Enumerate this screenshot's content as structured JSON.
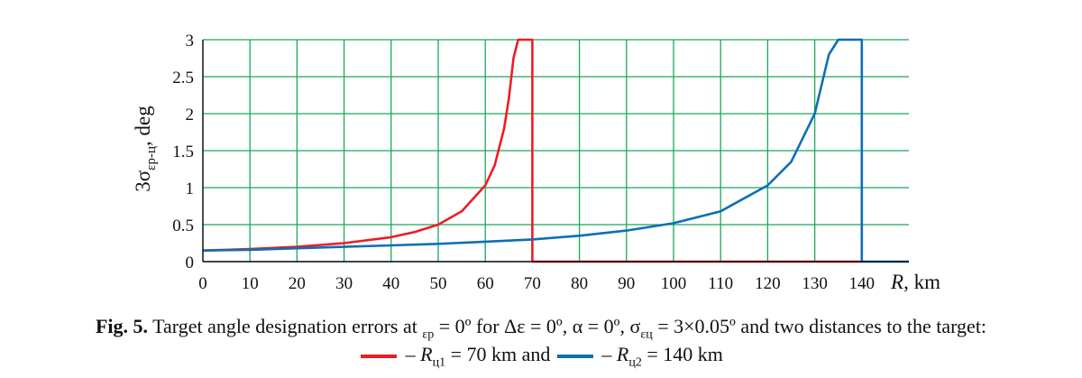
{
  "chart_data": {
    "type": "line",
    "xlabel": "R, km",
    "ylabel": "3σ",
    "ylabel_sub": "εр-ц",
    "ylabel_unit": ", deg",
    "xlim": [
      0,
      150
    ],
    "ylim": [
      0,
      3
    ],
    "x_ticks": [
      0,
      10,
      20,
      30,
      40,
      50,
      60,
      70,
      80,
      90,
      100,
      110,
      120,
      130,
      140
    ],
    "y_ticks": [
      0,
      0.5,
      1,
      1.5,
      2,
      2.5,
      3
    ],
    "y_tick_labels": [
      "0",
      "0.5",
      "1",
      "1.5",
      "2",
      "2.5",
      "3"
    ],
    "grid": true,
    "grid_color": "#1aa85a",
    "series": [
      {
        "color": "#ee1c25",
        "x": [
          0,
          10,
          20,
          30,
          40,
          45,
          50,
          55,
          60,
          62,
          64,
          65,
          66,
          67,
          70,
          70,
          140
        ],
        "y": [
          0.15,
          0.17,
          0.2,
          0.25,
          0.33,
          0.4,
          0.5,
          0.68,
          1.03,
          1.3,
          1.8,
          2.2,
          2.75,
          3.0,
          3.0,
          0,
          0
        ]
      },
      {
        "color": "#0c6fb5",
        "x": [
          0,
          10,
          20,
          30,
          40,
          50,
          60,
          70,
          80,
          90,
          100,
          110,
          120,
          125,
          130,
          133,
          135,
          140,
          140,
          150
        ],
        "y": [
          0.15,
          0.16,
          0.18,
          0.2,
          0.22,
          0.24,
          0.27,
          0.3,
          0.35,
          0.42,
          0.52,
          0.68,
          1.03,
          1.35,
          2.0,
          2.8,
          3.0,
          3.0,
          0,
          0
        ]
      }
    ]
  },
  "caption": {
    "line1_fig": "Fig. 5.",
    "line1_a": " Target angle designation errors at ",
    "line1_sub1": "εр",
    "line1_b": " = 0º for Δε = 0º, α = 0º, σ",
    "line1_sub2": "εц",
    "line1_c": " = 3×0.05º and two distances to the target:",
    "line2_a": " – R",
    "line2_sub1": "ц1",
    "line2_b": " = 70 km and ",
    "line2_c": " – R",
    "line2_sub2": "ц2",
    "line2_d": " = 140 km"
  }
}
